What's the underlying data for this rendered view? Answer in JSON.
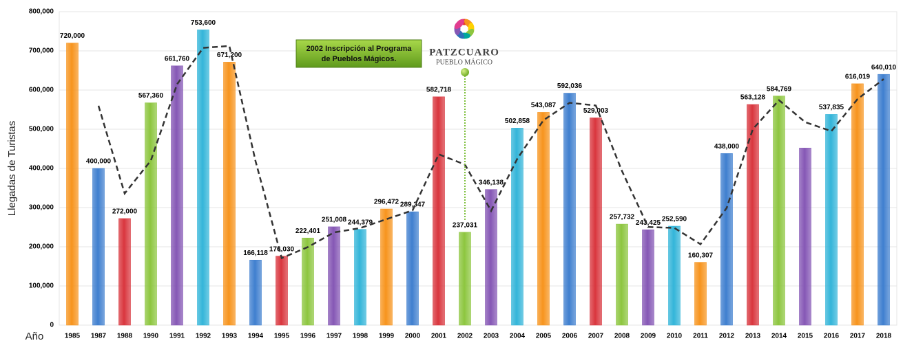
{
  "chart_data": {
    "type": "bar",
    "y_label": "Llegadas de Turistas",
    "x_label": "Año",
    "annotation": [
      "2002 Inscripción al Programa",
      "de Pueblos Mágicos."
    ],
    "logo": [
      "PATZCUARO",
      "PUEBLO MÁGICO"
    ],
    "categories": [
      "1985",
      "1987",
      "1988",
      "1990",
      "1991",
      "1992",
      "1993",
      "1994",
      "1995",
      "1996",
      "1997",
      "1998",
      "1999",
      "2000",
      "2001",
      "2002",
      "2003",
      "2004",
      "2005",
      "2006",
      "2007",
      "2008",
      "2009",
      "2010",
      "2011",
      "2012",
      "2013",
      "2014",
      "2015",
      "2016",
      "2017",
      "2018"
    ],
    "values": [
      720000,
      400000,
      272000,
      567360,
      661760,
      753600,
      671200,
      166118,
      176030,
      222401,
      251008,
      244379,
      296472,
      289347,
      582718,
      237031,
      346138,
      502858,
      543087,
      592036,
      529003,
      257732,
      243425,
      252590,
      160307,
      438000,
      563128,
      584769,
      452000,
      537835,
      616019,
      640010
    ],
    "value_labels": [
      "720,000",
      "400,000",
      "272,000",
      "567,360",
      "661,760",
      "753,600",
      "671,200",
      "166,118",
      "176,030",
      "222,401",
      "251,008",
      "244,379",
      "296,472",
      "289,347",
      "582,718",
      "237,031",
      "346,138",
      "502,858",
      "543,087",
      "592,036",
      "529,003",
      "257,732",
      "243,425",
      "252,590",
      "160,307",
      "438,000",
      "563,128",
      "584,769",
      null,
      "537,835",
      "616,019",
      "640,010"
    ],
    "colors": [
      "#f7941d",
      "#3f7fcf",
      "#d9363e",
      "#8dc63f",
      "#8557b5",
      "#33b5d9"
    ],
    "trend": {
      "color": "#333333",
      "values": [
        null,
        560000,
        336000,
        420000,
        614560,
        707680,
        712400,
        418659,
        171074,
        199216,
        236705,
        247694,
        270426,
        292910,
        436033,
        409875,
        291585,
        424498,
        522973,
        567562,
        560520,
        393368,
        250579,
        248008,
        206449,
        299154,
        500564,
        573949,
        518000,
        495000,
        577000,
        628000
      ]
    },
    "ylim": [
      0,
      800000
    ],
    "yticks": [
      0,
      {
        "value": 100000,
        "label": "100,000"
      },
      {
        "value": 200000,
        "label": "200,000"
      },
      {
        "value": 300000,
        "label": "300,000"
      },
      {
        "value": 400000,
        "label": "400,000"
      },
      {
        "value": 500000,
        "label": "500,000"
      },
      {
        "value": 600000,
        "label": "600,000"
      },
      {
        "value": 700000,
        "label": "700,000"
      },
      {
        "value": 800000,
        "label": "800,000"
      }
    ],
    "grid": true
  }
}
